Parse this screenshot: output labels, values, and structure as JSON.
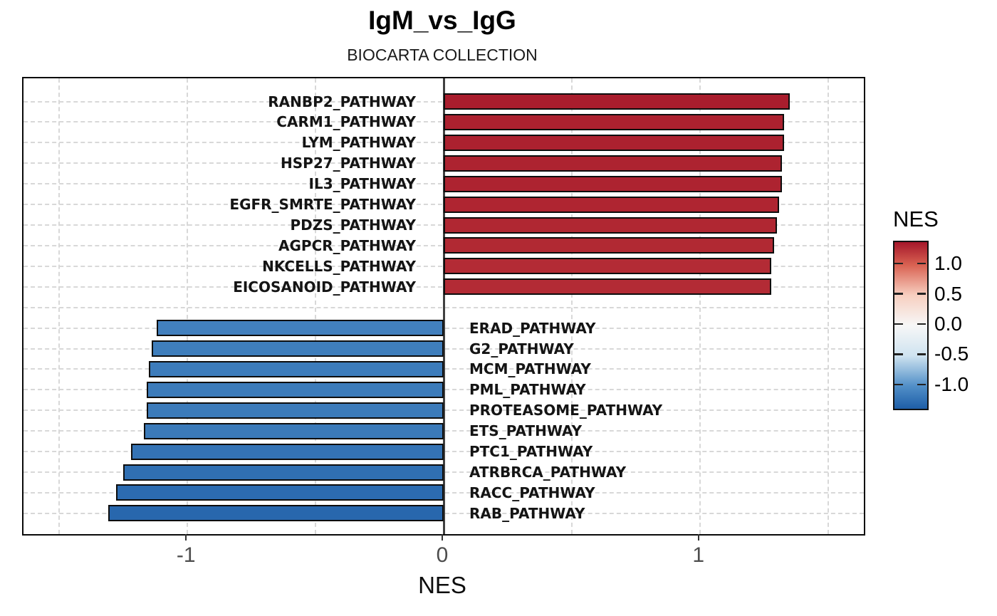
{
  "title": "IgM_vs_IgG",
  "subtitle": "BIOCARTA COLLECTION",
  "chart_data": {
    "type": "bar",
    "orientation": "horizontal-diverging",
    "title": "IgM_vs_IgG",
    "subtitle": "BIOCARTA COLLECTION",
    "xlabel": "NES",
    "xlim": [
      -1.64,
      1.64
    ],
    "x_ticks": [
      -1,
      0,
      1
    ],
    "x_tick_labels": [
      "-1",
      "0",
      "1"
    ],
    "x_minor_gridlines": [
      -1.5,
      -0.5,
      0.5,
      1.5
    ],
    "grid": true,
    "series": [
      {
        "name": "positive_NES",
        "direction": "positive",
        "points": [
          {
            "pathway": "RANBP2_PATHWAY",
            "nes": 1.35
          },
          {
            "pathway": "CARM1_PATHWAY",
            "nes": 1.33
          },
          {
            "pathway": "LYM_PATHWAY",
            "nes": 1.33
          },
          {
            "pathway": "HSP27_PATHWAY",
            "nes": 1.32
          },
          {
            "pathway": "IL3_PATHWAY",
            "nes": 1.32
          },
          {
            "pathway": "EGFR_SMRTE_PATHWAY",
            "nes": 1.31
          },
          {
            "pathway": "PDZS_PATHWAY",
            "nes": 1.3
          },
          {
            "pathway": "AGPCR_PATHWAY",
            "nes": 1.29
          },
          {
            "pathway": "NKCELLS_PATHWAY",
            "nes": 1.28
          },
          {
            "pathway": "EICOSANOID_PATHWAY",
            "nes": 1.28
          }
        ]
      },
      {
        "name": "negative_NES",
        "direction": "negative",
        "points": [
          {
            "pathway": "ERAD_PATHWAY",
            "nes": -1.12
          },
          {
            "pathway": "G2_PATHWAY",
            "nes": -1.14
          },
          {
            "pathway": "MCM_PATHWAY",
            "nes": -1.15
          },
          {
            "pathway": "PML_PATHWAY",
            "nes": -1.16
          },
          {
            "pathway": "PROTEASOME_PATHWAY",
            "nes": -1.16
          },
          {
            "pathway": "ETS_PATHWAY",
            "nes": -1.17
          },
          {
            "pathway": "PTC1_PATHWAY",
            "nes": -1.22
          },
          {
            "pathway": "ATRBRCA_PATHWAY",
            "nes": -1.25
          },
          {
            "pathway": "RACC_PATHWAY",
            "nes": -1.28
          },
          {
            "pathway": "RAB_PATHWAY",
            "nes": -1.31
          }
        ]
      }
    ],
    "legend": {
      "title": "NES",
      "position": "right",
      "tick_labels": [
        "1.0",
        "0.5",
        "0.0",
        "-0.5",
        "-1.0"
      ],
      "tick_values": [
        1.0,
        0.5,
        0.0,
        -0.5,
        -1.0
      ],
      "limits": [
        -1.38,
        1.38
      ],
      "color_anchors": [
        {
          "value": 1.38,
          "color": "#a5172a"
        },
        {
          "value": 1.0,
          "color": "#d96252"
        },
        {
          "value": 0.5,
          "color": "#f7cfc0"
        },
        {
          "value": 0.0,
          "color": "#f7f7f7"
        },
        {
          "value": -0.5,
          "color": "#cfe3f0"
        },
        {
          "value": -1.0,
          "color": "#5290c8"
        },
        {
          "value": -1.38,
          "color": "#1e5ea7"
        }
      ]
    },
    "colors": {
      "bar_outline": "#0d0d0d",
      "zero_line": "#404040",
      "gridline": "#d8d8d8",
      "axis_tick_text": "#4d4d4d",
      "panel_border": "#0a0a0a"
    }
  }
}
